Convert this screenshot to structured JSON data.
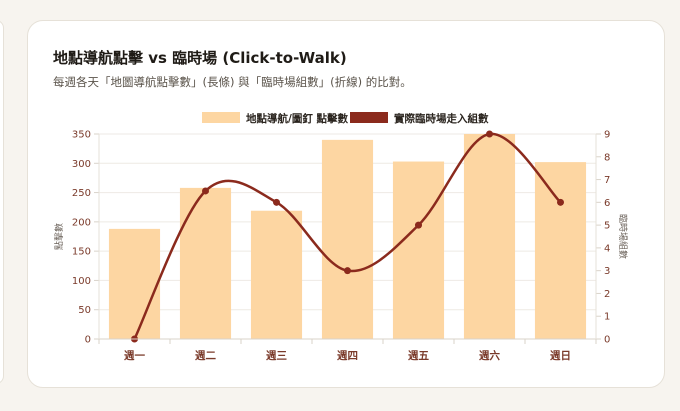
{
  "title": "地點導航點擊 vs 臨時場 (Click-to-Walk)",
  "subtitle": "每週各天「地圖導航點擊數」(長條) 與「臨時場組數」(折線) 的比對。",
  "chart_data": {
    "type": "bar",
    "categories": [
      "週一",
      "週二",
      "週三",
      "週四",
      "週五",
      "週六",
      "週日"
    ],
    "series": [
      {
        "name": "地點導航/圖釘 點擊數",
        "type": "bar",
        "axis": "left",
        "color": "#fdd6a2",
        "values": [
          188,
          258,
          219,
          340,
          303,
          350,
          302
        ]
      },
      {
        "name": "實際臨時場走入組數",
        "type": "line",
        "axis": "right",
        "color": "#8b2a1d",
        "values": [
          0,
          6.5,
          6,
          3,
          5,
          9,
          6
        ]
      }
    ],
    "ylabel": "點擊數",
    "y2label": "臨時場組數",
    "ylim": [
      0,
      350
    ],
    "y2lim": [
      0,
      9
    ],
    "yticks": [
      0,
      50,
      100,
      150,
      200,
      250,
      300,
      350
    ],
    "y2ticks": [
      0,
      1,
      2,
      3,
      4,
      5,
      6,
      7,
      8,
      9
    ],
    "grid": true,
    "legend": "top-center"
  }
}
